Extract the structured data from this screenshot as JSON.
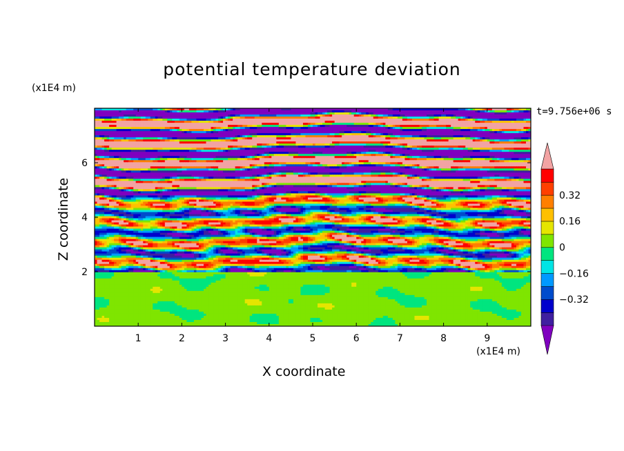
{
  "title": "potential temperature deviation",
  "time_label": "t=9.756e+06 s",
  "x_unit_label": "(x1E4 m)",
  "z_unit_label": "(x1E4 m)",
  "chart_data": {
    "type": "heatmap",
    "title": "potential temperature deviation",
    "xlabel": "X coordinate",
    "ylabel": "Z coordinate",
    "x_unit": "(x1E4 m)",
    "y_unit": "(x1E4 m)",
    "xlim": [
      0,
      10
    ],
    "ylim": [
      0,
      8
    ],
    "x_ticks": [
      "1",
      "2",
      "3",
      "4",
      "5",
      "6",
      "7",
      "8",
      "9"
    ],
    "y_ticks": [
      "2",
      "4",
      "6"
    ],
    "time": "t=9.756e+06 s",
    "colorbar": {
      "levels": [
        -0.48,
        -0.4,
        -0.32,
        -0.24,
        -0.16,
        -0.08,
        0,
        0.08,
        0.16,
        0.24,
        0.32,
        0.4,
        0.48
      ],
      "tick_labels": [
        "0.32",
        "0.16",
        "0",
        "−0.16",
        "−0.32"
      ],
      "tick_values": [
        0.32,
        0.16,
        0,
        -0.16,
        -0.32
      ],
      "colors": [
        "#7f00bf",
        "#3f1fa0",
        "#0000cc",
        "#004ccc",
        "#0099ff",
        "#00e5e5",
        "#00e57f",
        "#7fe500",
        "#e5e500",
        "#ffc000",
        "#ff7f00",
        "#ff3f00",
        "#ff0000",
        "#f2a3a3"
      ],
      "over_color": "#f2a3a3",
      "under_color": "#7f00bf",
      "extend": "both"
    }
  }
}
